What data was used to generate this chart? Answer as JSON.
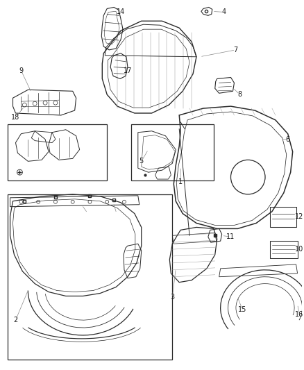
{
  "bg_color": "#ffffff",
  "line_color": "#2a2a2a",
  "label_color": "#1a1a1a",
  "fig_width": 4.38,
  "fig_height": 5.33,
  "dpi": 100,
  "font_size": 7.0,
  "gray": "#888888",
  "darkgray": "#555555"
}
